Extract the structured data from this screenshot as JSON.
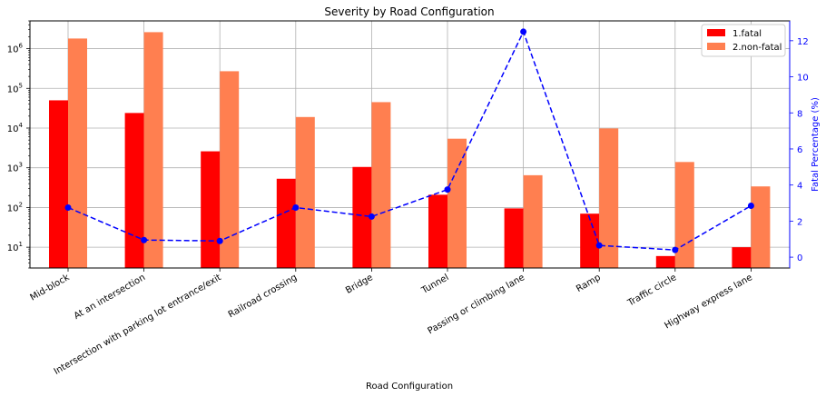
{
  "chart_data": {
    "type": "bar",
    "title": "Severity by  Road Configuration",
    "xlabel": "Road Configuration",
    "ylabel": "",
    "y2label": "Fatal Percentage (%)",
    "yscale": "log",
    "ylim": [
      3,
      5000000
    ],
    "y2lim": [
      -0.6,
      13.1
    ],
    "grid": true,
    "legend_position": "top-right",
    "categories": [
      "Mid-block",
      "At an intersection",
      "Intersection with parking lot entrance/exit",
      "Railroad crossing",
      "Bridge",
      "Tunnel",
      "Passing or climbing lane",
      "Ramp",
      "Traffic circle",
      "Highway express lane"
    ],
    "series": [
      {
        "name": "1.fatal",
        "color": "#ff0000",
        "values": [
          50000,
          24000,
          2600,
          530,
          1050,
          210,
          95,
          70,
          6,
          10
        ]
      },
      {
        "name": "2.non-fatal",
        "color": "#ff7f50",
        "values": [
          1800000,
          2600000,
          270000,
          19000,
          45000,
          5400,
          650,
          9800,
          1400,
          340
        ]
      }
    ],
    "line_series": {
      "name": "Fatal Percentage (%)",
      "color": "#0000ff",
      "axis": "right",
      "values": [
        2.75,
        0.95,
        0.9,
        2.75,
        2.25,
        3.75,
        12.5,
        0.65,
        0.4,
        2.85
      ]
    },
    "y_ticks": [
      {
        "value": 10,
        "base": "10",
        "exp": "1"
      },
      {
        "value": 100,
        "base": "10",
        "exp": "2"
      },
      {
        "value": 1000,
        "base": "10",
        "exp": "3"
      },
      {
        "value": 10000,
        "base": "10",
        "exp": "4"
      },
      {
        "value": 100000,
        "base": "10",
        "exp": "5"
      },
      {
        "value": 1000000,
        "base": "10",
        "exp": "6"
      }
    ],
    "y2_ticks": [
      "0",
      "2",
      "4",
      "6",
      "8",
      "10",
      "12"
    ]
  }
}
